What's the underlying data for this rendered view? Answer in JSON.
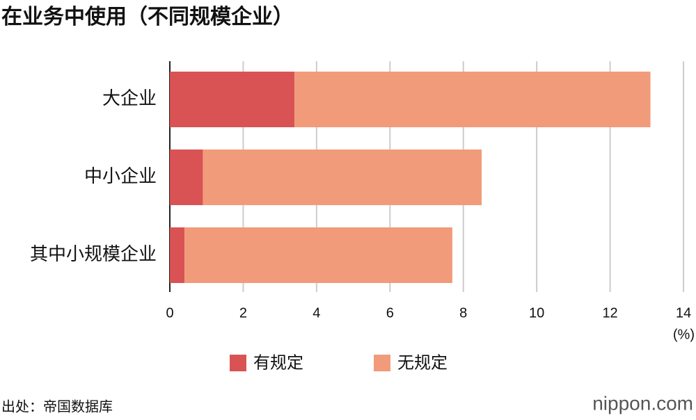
{
  "chart_data": {
    "type": "stacked_bar_horizontal",
    "title": "在业务中使用（不同规模企业）",
    "categories": [
      "大企业",
      "中小企业",
      "其中小规模企业"
    ],
    "series": [
      {
        "name": "有规定",
        "color": "#d95354",
        "values": [
          3.4,
          0.9,
          0.4
        ]
      },
      {
        "name": "无规定",
        "color": "#f29b7b",
        "values": [
          9.7,
          7.6,
          7.3
        ]
      }
    ],
    "xlim": [
      0,
      14
    ],
    "xticks": [
      0,
      2,
      4,
      6,
      8,
      10,
      12,
      14
    ],
    "grid": true,
    "x_unit": "(%)",
    "source": "出处：帝国数据库",
    "logo": "nippon.com"
  }
}
